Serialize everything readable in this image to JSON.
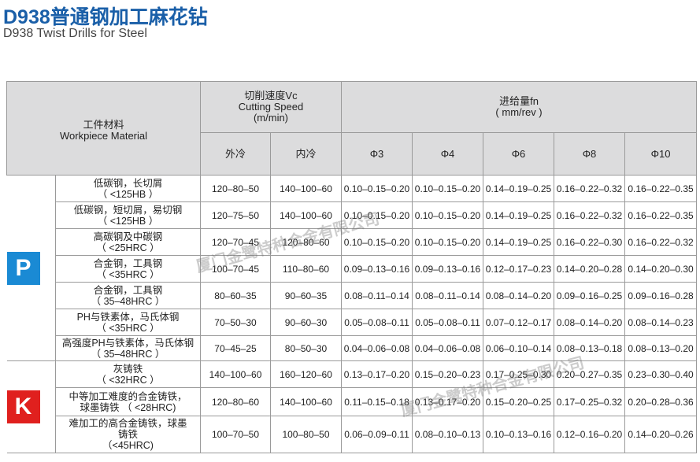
{
  "header": {
    "title": "D938普通钢加工麻花钻",
    "subtitle": "D938 Twist Drills for Steel"
  },
  "table": {
    "material_header": [
      "工件材料",
      "Workpiece Material"
    ],
    "speed_header": [
      "切削速度Vc",
      "Cutting Speed",
      "(m/min)"
    ],
    "feed_header": [
      "进给量fn",
      "( mm/rev )"
    ],
    "subheaders": [
      "外冷",
      "内冷",
      "Φ3",
      "Φ4",
      "Φ6",
      "Φ8",
      "Φ10"
    ],
    "groups": [
      {
        "letter": "P",
        "color": "#1a8ad4",
        "rows": [
          {
            "material": [
              "低碳钢，长切屑",
              "（ <125HB ）"
            ],
            "values": [
              "120–80–50",
              "140–100–60",
              "0.10–0.15–0.20",
              "0.10–0.15–0.20",
              "0.14–0.19–0.25",
              "0.16–0.22–0.32",
              "0.16–0.22–0.35"
            ]
          },
          {
            "material": [
              "低碳钢，短切屑，易切钢",
              "（ <125HB ）"
            ],
            "values": [
              "120–75–50",
              "140–100–60",
              "0.10–0.15–0.20",
              "0.10–0.15–0.20",
              "0.14–0.19–0.25",
              "0.16–0.22–0.32",
              "0.16–0.22–0.35"
            ]
          },
          {
            "material": [
              "高碳钢及中碳钢",
              "（ <25HRC ）"
            ],
            "values": [
              "120–70–45",
              "120–80–60",
              "0.10–0.15–0.20",
              "0.10–0.15–0.20",
              "0.14–0.19–0.25",
              "0.16–0.22–0.30",
              "0.16–0.22–0.32"
            ]
          },
          {
            "material": [
              "合金钢，工具钢",
              "（ <35HRC ）"
            ],
            "values": [
              "100–70–45",
              "110–80–60",
              "0.09–0.13–0.16",
              "0.09–0.13–0.16",
              "0.12–0.17–0.23",
              "0.14–0.20–0.28",
              "0.14–0.20–0.30"
            ]
          },
          {
            "material": [
              "合金钢，工具钢",
              "（ 35–48HRC ）"
            ],
            "values": [
              "80–60–35",
              "90–60–35",
              "0.08–0.11–0.14",
              "0.08–0.11–0.14",
              "0.08–0.14–0.20",
              "0.09–0.16–0.25",
              "0.09–0.16–0.28"
            ]
          },
          {
            "material": [
              "PH与铁素体，马氏体钢",
              "（ <35HRC ）"
            ],
            "values": [
              "70–50–30",
              "90–60–30",
              "0.05–0.08–0.11",
              "0.05–0.08–0.11",
              "0.07–0.12–0.17",
              "0.08–0.14–0.20",
              "0.08–0.14–0.23"
            ]
          },
          {
            "material": [
              "高强度PH与铁素体，马氏体钢",
              "（ 35–48HRC ）"
            ],
            "values": [
              "70–45–25",
              "80–50–30",
              "0.04–0.06–0.08",
              "0.04–0.06–0.08",
              "0.06–0.10–0.14",
              "0.08–0.13–0.18",
              "0.08–0.13–0.20"
            ]
          }
        ]
      },
      {
        "letter": "K",
        "color": "#e0201e",
        "rows": [
          {
            "material": [
              "灰铸铁",
              "（ <32HRC ）"
            ],
            "values": [
              "140–100–60",
              "160–120–60",
              "0.13–0.17–0.20",
              "0.15–0.20–0.23",
              "0.17–0.25–0.30",
              "0.20–0.27–0.35",
              "0.23–0.30–0.40"
            ]
          },
          {
            "material": [
              "中等加工难度的合金铸铁，",
              "球墨铸铁 （ <28HRC)"
            ],
            "values": [
              "120–80–60",
              "140–100–60",
              "0.11–0.15–0.18",
              "0.13–0.17–0.20",
              "0.15–0.20–0.25",
              "0.17–0.25–0.32",
              "0.20–0.28–0.36"
            ]
          },
          {
            "material": [
              "难加工的高合金铸铁，球墨",
              "铸铁",
              "（<45HRC)"
            ],
            "values": [
              "100–70–50",
              "100–80–50",
              "0.06–0.09–0.11",
              "0.08–0.10–0.13",
              "0.10–0.13–0.16",
              "0.12–0.16–0.20",
              "0.14–0.20–0.26"
            ]
          }
        ]
      }
    ]
  },
  "watermark": "厦门金鹭特种合金有限公司"
}
